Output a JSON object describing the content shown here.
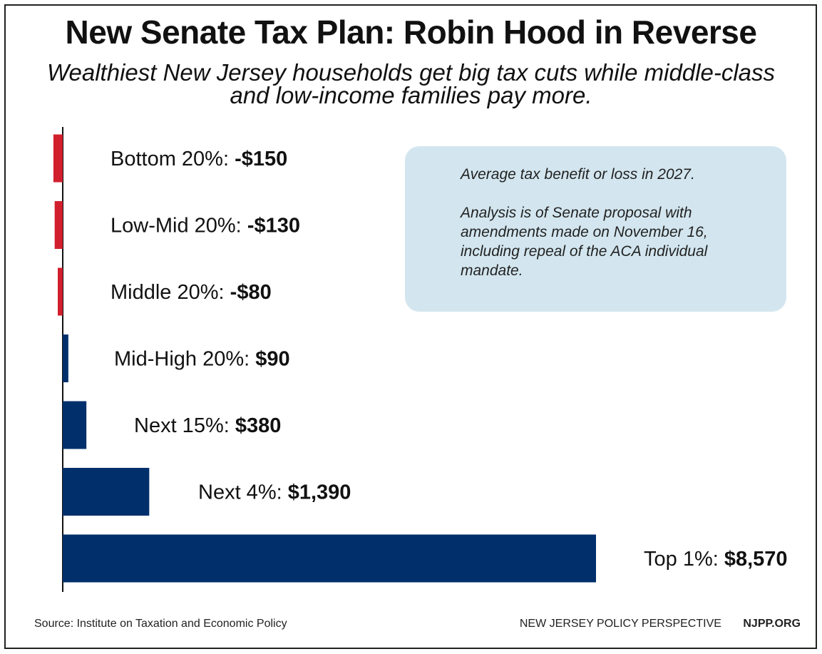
{
  "header": {
    "title": "New Senate Tax Plan: Robin Hood in Reverse",
    "subtitle_line1": "Wealthiest New Jersey households get big tax cuts while middle-class",
    "subtitle_line2": "and low-income families pay more."
  },
  "note": {
    "line1": "Average tax benefit or loss in 2027.",
    "line2": "Analysis is of Senate proposal with amendments made on November 16, including repeal of the ACA individual mandate."
  },
  "footer": {
    "source": "Source: Institute on Taxation and Economic Policy",
    "org": "NEW JERSEY POLICY PERSPECTIVE",
    "url": "NJPP.ORG"
  },
  "colors": {
    "negative": "#d21f2d",
    "positive": "#002f6c",
    "note_bg": "#d3e6ef"
  },
  "chart_data": {
    "type": "bar",
    "orientation": "horizontal",
    "title": "New Senate Tax Plan: Robin Hood in Reverse",
    "categories": [
      "Bottom 20%",
      "Low-Mid 20%",
      "Middle 20%",
      "Mid-High 20%",
      "Next 15%",
      "Next 4%",
      "Top 1%"
    ],
    "values": [
      -150,
      -130,
      -80,
      90,
      380,
      1390,
      8570
    ],
    "value_labels": [
      "-$150",
      "-$130",
      "-$80",
      "$90",
      "$380",
      "$1,390",
      "$8,570"
    ],
    "xlim": [
      -200,
      8570
    ],
    "grid": false
  }
}
